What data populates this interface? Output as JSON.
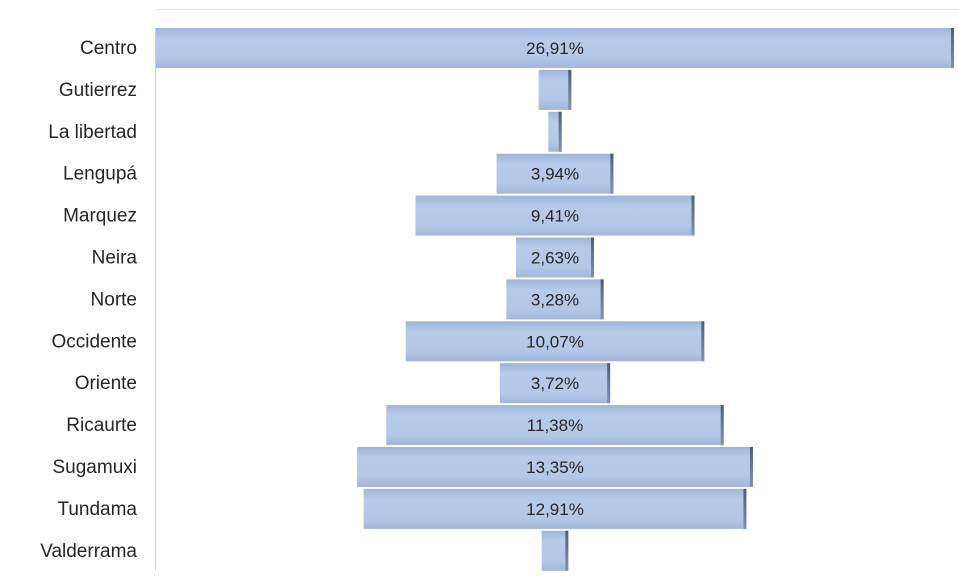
{
  "chart_data": {
    "type": "bar",
    "orientation": "horizontal",
    "style": "funnel (bars centered)",
    "categories": [
      "Centro",
      "Gutierrez",
      "La libertad",
      "Lengupá",
      "Marquez",
      "Neira",
      "Norte",
      "Occidente",
      "Oriente",
      "Ricaurte",
      "Sugamuxi",
      "Tundama",
      "Valderrama"
    ],
    "values": [
      26.91,
      1.1,
      0.45,
      3.94,
      9.41,
      2.63,
      3.28,
      10.07,
      3.72,
      11.38,
      13.35,
      12.91,
      0.9
    ],
    "data_labels": [
      "26,91%",
      "",
      "",
      "3,94%",
      "9,41%",
      "2,63%",
      "3,28%",
      "10,07%",
      "3,72%",
      "11,38%",
      "13,35%",
      "12,91%",
      ""
    ],
    "unit": "%",
    "bar_color": "#b4c7e7",
    "title": "",
    "xlabel": "",
    "ylabel": "",
    "legend": "none",
    "grid": false
  }
}
